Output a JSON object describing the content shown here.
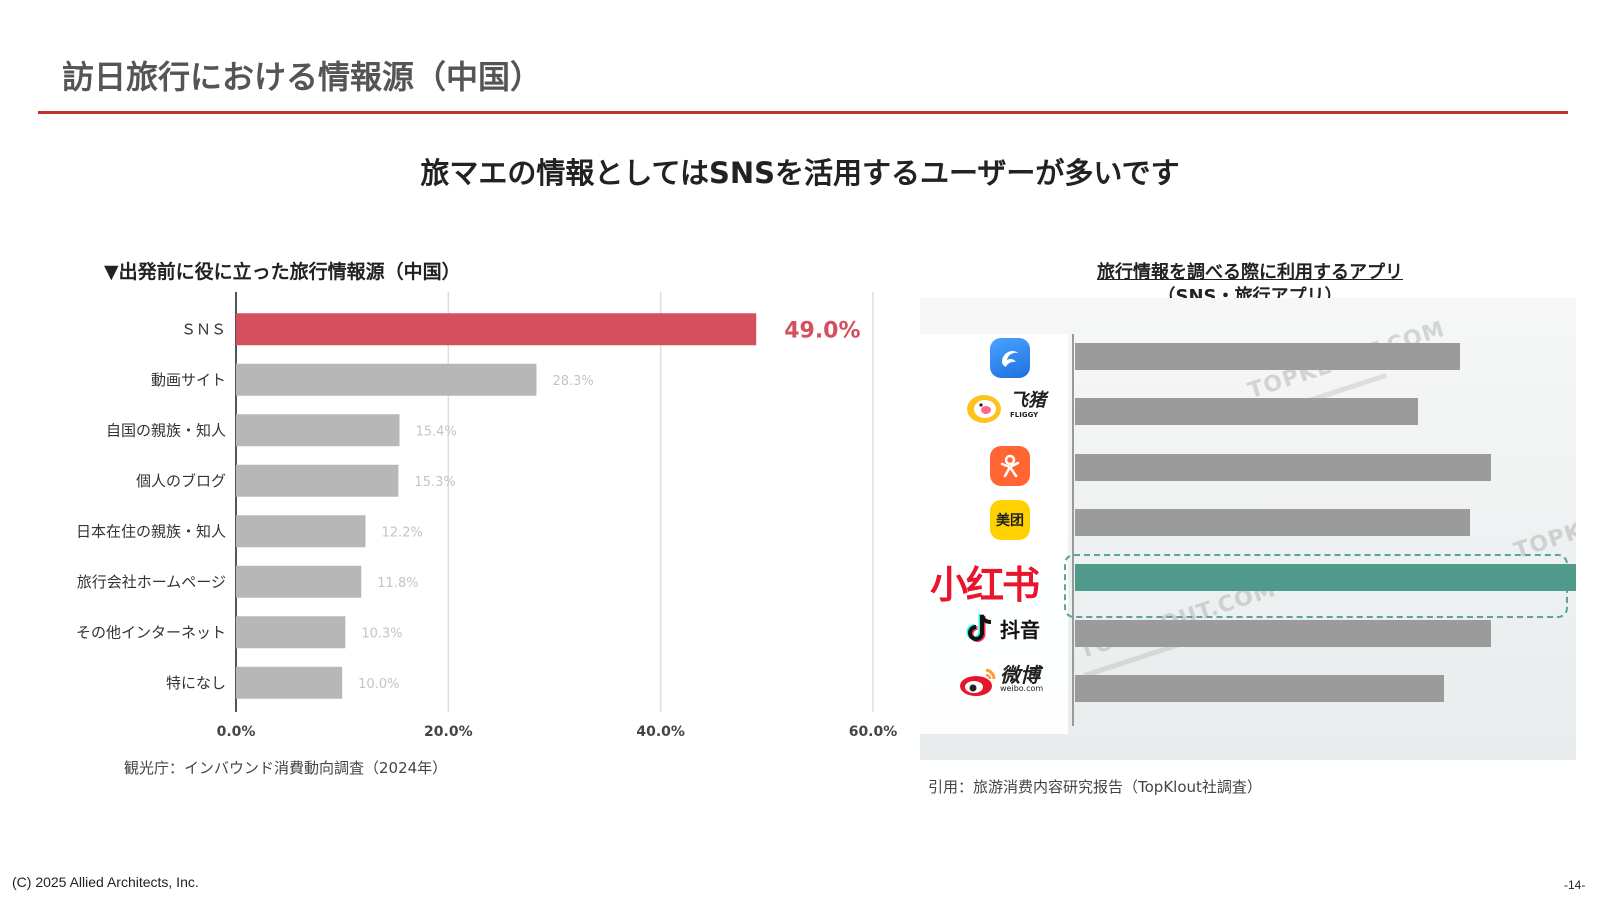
{
  "slide": {
    "title": "訪日旅行における情報源（中国）",
    "headline": "旅マエの情報としてはSNSを活用するユーザーが多いです",
    "copyright": "(C) 2025 Allied Architects, Inc.",
    "page_number": "-14-"
  },
  "chart_data": [
    {
      "type": "bar",
      "orientation": "horizontal",
      "title": "▼出発前に役に立った旅行情報源（中国）",
      "categories": [
        "ＳＮＳ",
        "動画サイト",
        "自国の親族・知人",
        "個人のブログ",
        "日本在住の親族・知人",
        "旅行会社ホームページ",
        "その他インターネット",
        "特になし"
      ],
      "values": [
        49.0,
        28.3,
        15.4,
        15.3,
        12.2,
        11.8,
        10.3,
        10.0
      ],
      "value_labels": [
        "49.0%",
        "28.3%",
        "15.4%",
        "15.3%",
        "12.2%",
        "11.8%",
        "10.3%",
        "10.0%"
      ],
      "xlim": [
        0,
        60
      ],
      "ticks": [
        "0.0%",
        "20.0%",
        "40.0%",
        "60.0%"
      ],
      "grid": true,
      "highlight_index": 0,
      "colors": {
        "highlight": "#d4505f",
        "default": "#b7b7b7",
        "highlight_label": "#d4505f",
        "label": "#c4c4c4"
      },
      "source": "観光庁：インバウンド消費動向調査（2024年）"
    },
    {
      "type": "bar",
      "orientation": "horizontal",
      "title": "旅行情報を調べる際に利用するアプリ",
      "subtitle": "（SNS・旅行アプリ）",
      "categories": [
        "携程",
        "飞猪",
        "大众点评",
        "美团",
        "小红书",
        "抖音",
        "微博"
      ],
      "values": [
        74,
        66,
        80,
        76,
        97,
        80,
        71
      ],
      "highlight_index": 4,
      "colors": {
        "highlight": "#4f9a8a",
        "default": "#9b9b9b"
      },
      "source": "引用：旅游消费内容研究报告（TopKlout社調査）"
    }
  ],
  "app_icons": {
    "feizhu_text": "飞猪",
    "feizhu_sub": "FLIGGY",
    "meituan_text": "美团",
    "xiaohongshu_text": "小红书",
    "douyin_text": "抖音",
    "weibo_text": "微博",
    "weibo_sub": "weibo.com"
  },
  "watermark": "TOPKLOUT.COM"
}
